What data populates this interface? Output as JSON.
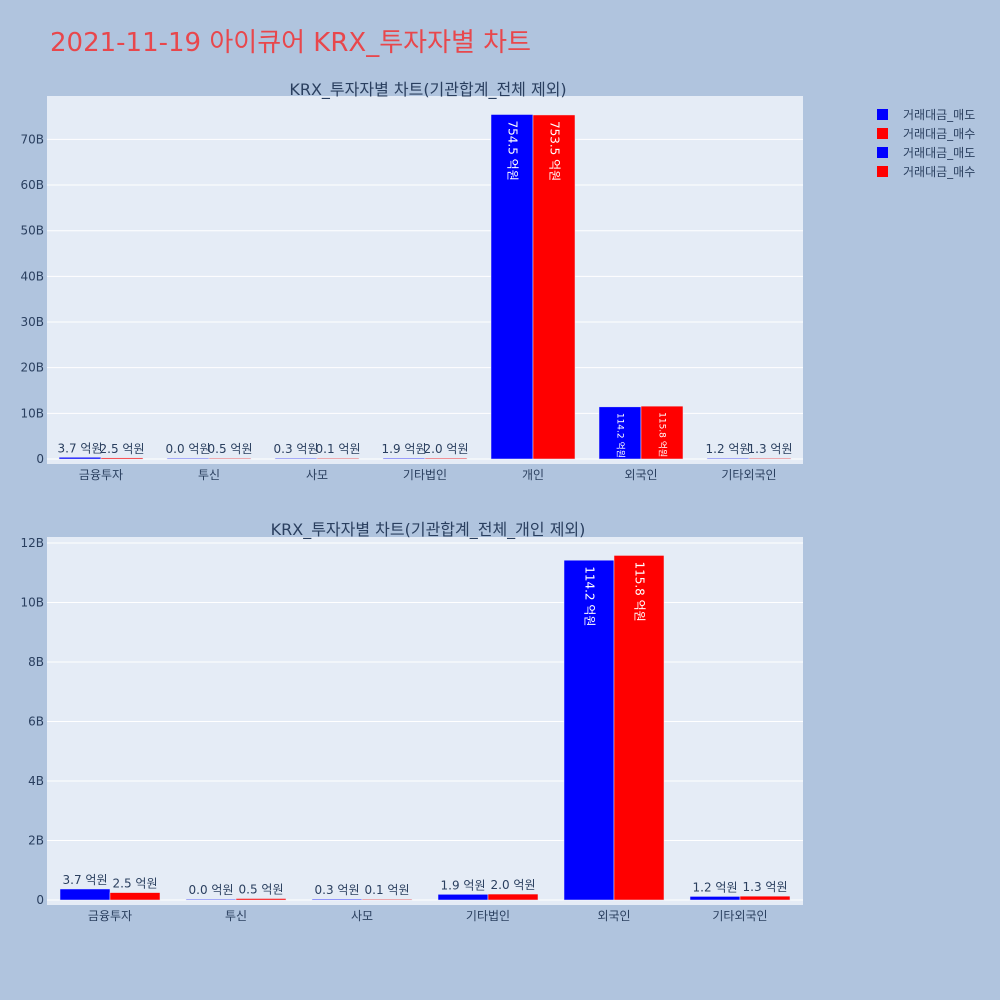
{
  "page": {
    "title": "2021-11-19 아이큐어 KRX_투자자별 차트"
  },
  "legend": [
    {
      "label": "거래대금_매도",
      "color": "#0000ff"
    },
    {
      "label": "거래대금_매수",
      "color": "#ff0000"
    },
    {
      "label": "거래대금_매도",
      "color": "#0000ff"
    },
    {
      "label": "거래대금_매수",
      "color": "#ff0000"
    }
  ],
  "colors": {
    "background": "#b0c4de",
    "plot_background": "#e5ecf6",
    "sell": "#0000ff",
    "buy": "#ff0000",
    "title": "#e8474c"
  },
  "chart_data": [
    {
      "type": "bar",
      "title": "KRX_투자자별 차트(기관합계_전체 제외)",
      "categories": [
        "금융투자",
        "투신",
        "사모",
        "기타법인",
        "개인",
        "외국인",
        "기타외국인"
      ],
      "series": [
        {
          "name": "거래대금_매도",
          "color": "#0000ff",
          "values": [
            0.37,
            0.0,
            0.03,
            0.19,
            75.45,
            11.42,
            0.12
          ],
          "labels": [
            "3.7 억원",
            "0.0 억원",
            "0.3 억원",
            "1.9 억원",
            "754.5 억원",
            "114.2 억원",
            "1.2 억원"
          ]
        },
        {
          "name": "거래대금_매수",
          "color": "#ff0000",
          "values": [
            0.25,
            0.05,
            0.01,
            0.2,
            75.35,
            11.58,
            0.13
          ],
          "labels": [
            "2.5 억원",
            "0.5 억원",
            "0.1 억원",
            "2.0 억원",
            "753.5 억원",
            "115.8 억원",
            "1.3 억원"
          ]
        }
      ],
      "yticks": [
        0,
        10,
        20,
        30,
        40,
        50,
        60,
        70
      ],
      "ytick_labels": [
        "0",
        "10B",
        "20B",
        "30B",
        "40B",
        "50B",
        "60B",
        "70B"
      ],
      "ylim": [
        0,
        79.5
      ],
      "xlabel": "",
      "ylabel": "",
      "grid": true
    },
    {
      "type": "bar",
      "title": "KRX_투자자별 차트(기관합계_전체_개인 제외)",
      "categories": [
        "금융투자",
        "투신",
        "사모",
        "기타법인",
        "외국인",
        "기타외국인"
      ],
      "series": [
        {
          "name": "거래대금_매도",
          "color": "#0000ff",
          "values": [
            0.37,
            0.0,
            0.03,
            0.19,
            11.42,
            0.12
          ],
          "labels": [
            "3.7 억원",
            "0.0 억원",
            "0.3 억원",
            "1.9 억원",
            "114.2 억원",
            "1.2 억원"
          ]
        },
        {
          "name": "거래대금_매수",
          "color": "#ff0000",
          "values": [
            0.25,
            0.05,
            0.01,
            0.2,
            11.58,
            0.13
          ],
          "labels": [
            "2.5 억원",
            "0.5 억원",
            "0.1 억원",
            "2.0 억원",
            "115.8 억원",
            "1.3 억원"
          ]
        }
      ],
      "yticks": [
        0,
        2,
        4,
        6,
        8,
        10,
        12
      ],
      "ytick_labels": [
        "0",
        "2B",
        "4B",
        "6B",
        "8B",
        "10B",
        "12B"
      ],
      "ylim": [
        0,
        12.2
      ],
      "xlabel": "",
      "ylabel": "",
      "grid": true
    }
  ]
}
